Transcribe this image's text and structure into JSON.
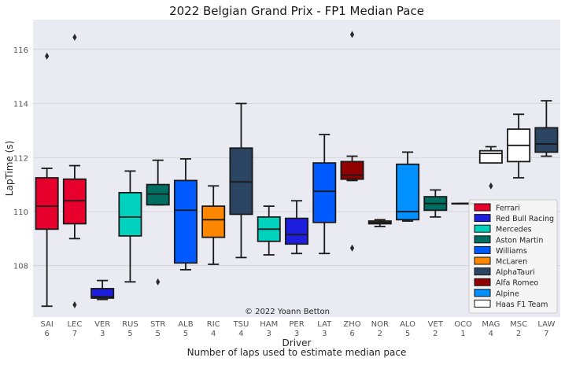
{
  "colors": {
    "background": "#ffffff",
    "plot_background": "#eaeaf2",
    "grid": "#d0d0d0",
    "text": "#262626",
    "tick_text": "#555555",
    "legend_background": "#f7f7f7",
    "legend_border": "#cccccc",
    "box_edge": "#1a1a1a"
  },
  "chart_data": {
    "type": "box",
    "title": "2022 Belgian Grand Prix - FP1 Median Pace",
    "xlabel": "Driver",
    "xlabel2": "Number of laps used to estimate median pace",
    "ylabel": "LapTime (s)",
    "ylim": [
      106.1,
      117.1
    ],
    "yticks": [
      108,
      110,
      112,
      114,
      116
    ],
    "grid": true,
    "legend_position": "lower right",
    "annotation": "© 2022 Yoann Betton",
    "legend": [
      {
        "team": "Ferrari",
        "color": "#e8002d"
      },
      {
        "team": "Red Bull Racing",
        "color": "#1e1ee0"
      },
      {
        "team": "Mercedes",
        "color": "#00d2be"
      },
      {
        "team": "Aston Martin",
        "color": "#006f62"
      },
      {
        "team": "Williams",
        "color": "#005aff"
      },
      {
        "team": "McLaren",
        "color": "#ff8700"
      },
      {
        "team": "AlphaTauri",
        "color": "#2b4562"
      },
      {
        "team": "Alfa Romeo",
        "color": "#900000"
      },
      {
        "team": "Alpine",
        "color": "#0090ff"
      },
      {
        "team": "Haas F1 Team",
        "color": "#ffffff"
      }
    ],
    "drivers": [
      {
        "driver": "SAI",
        "laps": "6",
        "color": "#e8002d",
        "whisker_low": 106.5,
        "q1": 109.35,
        "median": 110.2,
        "q3": 111.25,
        "whisker_high": 111.6,
        "outliers": [
          115.75
        ]
      },
      {
        "driver": "LEC",
        "laps": "7",
        "color": "#e8002d",
        "whisker_low": 109.0,
        "q1": 109.55,
        "median": 110.4,
        "q3": 111.2,
        "whisker_high": 111.7,
        "outliers": [
          116.45,
          106.55
        ]
      },
      {
        "driver": "VER",
        "laps": "3",
        "color": "#1e1ee0",
        "whisker_low": 106.75,
        "q1": 106.8,
        "median": 106.85,
        "q3": 107.15,
        "whisker_high": 107.45,
        "outliers": []
      },
      {
        "driver": "RUS",
        "laps": "5",
        "color": "#00d2be",
        "whisker_low": 107.4,
        "q1": 109.1,
        "median": 109.8,
        "q3": 110.7,
        "whisker_high": 111.5,
        "outliers": []
      },
      {
        "driver": "STR",
        "laps": "5",
        "color": "#006f62",
        "whisker_low": 110.25,
        "q1": 110.25,
        "median": 110.65,
        "q3": 111.0,
        "whisker_high": 111.9,
        "outliers": [
          107.4
        ]
      },
      {
        "driver": "ALB",
        "laps": "5",
        "color": "#005aff",
        "whisker_low": 107.85,
        "q1": 108.1,
        "median": 110.05,
        "q3": 111.15,
        "whisker_high": 111.95,
        "outliers": []
      },
      {
        "driver": "RIC",
        "laps": "4",
        "color": "#ff8700",
        "whisker_low": 108.05,
        "q1": 109.05,
        "median": 109.7,
        "q3": 110.2,
        "whisker_high": 110.95,
        "outliers": []
      },
      {
        "driver": "TSU",
        "laps": "4",
        "color": "#2b4562",
        "whisker_low": 108.3,
        "q1": 109.9,
        "median": 111.1,
        "q3": 112.35,
        "whisker_high": 114.0,
        "outliers": []
      },
      {
        "driver": "HAM",
        "laps": "3",
        "color": "#00d2be",
        "whisker_low": 108.4,
        "q1": 108.9,
        "median": 109.35,
        "q3": 109.8,
        "whisker_high": 110.2,
        "outliers": []
      },
      {
        "driver": "PER",
        "laps": "3",
        "color": "#1e1ee0",
        "whisker_low": 108.45,
        "q1": 108.8,
        "median": 109.15,
        "q3": 109.75,
        "whisker_high": 110.4,
        "outliers": []
      },
      {
        "driver": "LAT",
        "laps": "3",
        "color": "#005aff",
        "whisker_low": 108.45,
        "q1": 109.6,
        "median": 110.75,
        "q3": 111.8,
        "whisker_high": 112.85,
        "outliers": []
      },
      {
        "driver": "ZHO",
        "laps": "6",
        "color": "#900000",
        "whisker_low": 111.15,
        "q1": 111.2,
        "median": 111.35,
        "q3": 111.85,
        "whisker_high": 112.05,
        "outliers": [
          116.55,
          108.65
        ]
      },
      {
        "driver": "NOR",
        "laps": "2",
        "color": "#ff8700",
        "whisker_low": 109.45,
        "q1": 109.55,
        "median": 109.6,
        "q3": 109.65,
        "whisker_high": 109.7,
        "outliers": []
      },
      {
        "driver": "ALO",
        "laps": "5",
        "color": "#0090ff",
        "whisker_low": 109.65,
        "q1": 109.7,
        "median": 110.0,
        "q3": 111.75,
        "whisker_high": 112.2,
        "outliers": []
      },
      {
        "driver": "VET",
        "laps": "2",
        "color": "#006f62",
        "whisker_low": 109.8,
        "q1": 110.05,
        "median": 110.3,
        "q3": 110.55,
        "whisker_high": 110.8,
        "outliers": []
      },
      {
        "driver": "OCO",
        "laps": "1",
        "color": "#0090ff",
        "whisker_low": 110.3,
        "q1": 110.3,
        "median": 110.3,
        "q3": 110.3,
        "whisker_high": 110.3,
        "outliers": []
      },
      {
        "driver": "MAG",
        "laps": "4",
        "color": "#ffffff",
        "whisker_low": 111.8,
        "q1": 111.8,
        "median": 112.15,
        "q3": 112.25,
        "whisker_high": 112.4,
        "outliers": [
          110.95
        ]
      },
      {
        "driver": "MSC",
        "laps": "2",
        "color": "#ffffff",
        "whisker_low": 111.25,
        "q1": 111.85,
        "median": 112.45,
        "q3": 113.05,
        "whisker_high": 113.6,
        "outliers": []
      },
      {
        "driver": "LAW",
        "laps": "7",
        "color": "#2b4562",
        "whisker_low": 112.05,
        "q1": 112.2,
        "median": 112.5,
        "q3": 113.1,
        "whisker_high": 114.1,
        "outliers": []
      }
    ]
  }
}
